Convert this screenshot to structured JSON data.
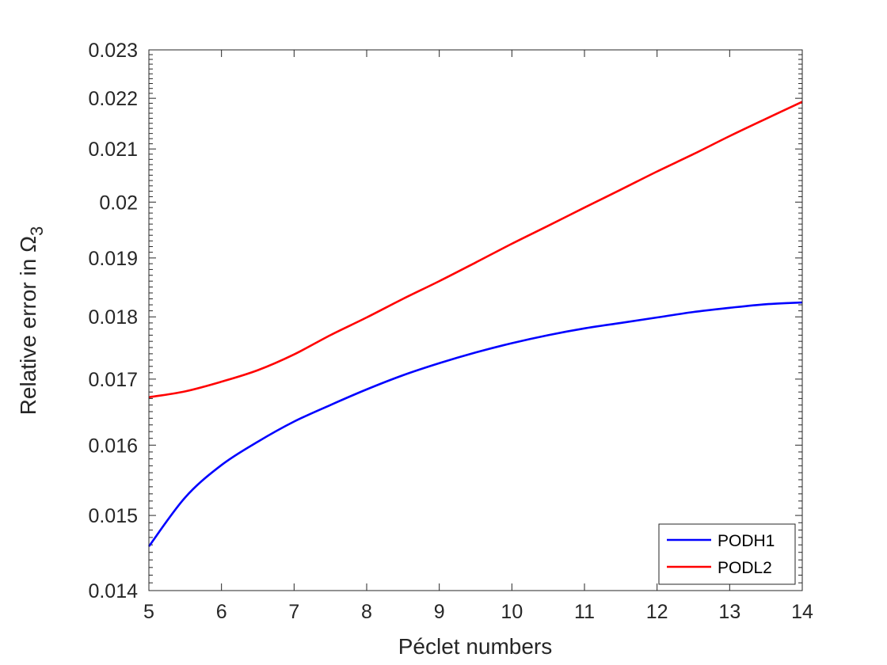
{
  "chart_data": {
    "type": "line",
    "title": "",
    "xlabel": "Péclet numbers",
    "ylabel": {
      "text": "Relative error in Ω",
      "subscript": "3"
    },
    "yscale": "log",
    "xlim": [
      5,
      14
    ],
    "ylim": [
      0.014,
      0.023
    ],
    "xticks": [
      5,
      6,
      7,
      8,
      9,
      10,
      11,
      12,
      13,
      14
    ],
    "xtick_labels": [
      "5",
      "6",
      "7",
      "8",
      "9",
      "10",
      "11",
      "12",
      "13",
      "14"
    ],
    "yticks": [
      0.014,
      0.015,
      0.016,
      0.017,
      0.018,
      0.019,
      0.02,
      0.021,
      0.022,
      0.023
    ],
    "ytick_labels": [
      "0.014",
      "0.015",
      "0.016",
      "0.017",
      "0.018",
      "0.019",
      "0.02",
      "0.021",
      "0.022",
      "0.023"
    ],
    "grid": false,
    "legend_position": "bottom-right",
    "x": [
      5,
      5.5,
      6,
      6.5,
      7,
      7.5,
      8,
      8.5,
      9,
      9.5,
      10,
      10.5,
      11,
      11.5,
      12,
      12.5,
      13,
      13.5,
      14
    ],
    "series": [
      {
        "name": "PODH1",
        "color": "#0000ff",
        "values": [
          0.01458,
          0.01525,
          0.01571,
          0.01605,
          0.01635,
          0.0166,
          0.01684,
          0.01706,
          0.01725,
          0.01742,
          0.01757,
          0.0177,
          0.01781,
          0.0179,
          0.01799,
          0.01808,
          0.01815,
          0.01821,
          0.01824
        ]
      },
      {
        "name": "PODL2",
        "color": "#ff0000",
        "values": [
          0.01672,
          0.01681,
          0.01696,
          0.01714,
          0.01739,
          0.0177,
          0.01799,
          0.0183,
          0.0186,
          0.01892,
          0.01925,
          0.01957,
          0.0199,
          0.02023,
          0.02057,
          0.0209,
          0.02125,
          0.02159,
          0.02193
        ]
      }
    ]
  }
}
